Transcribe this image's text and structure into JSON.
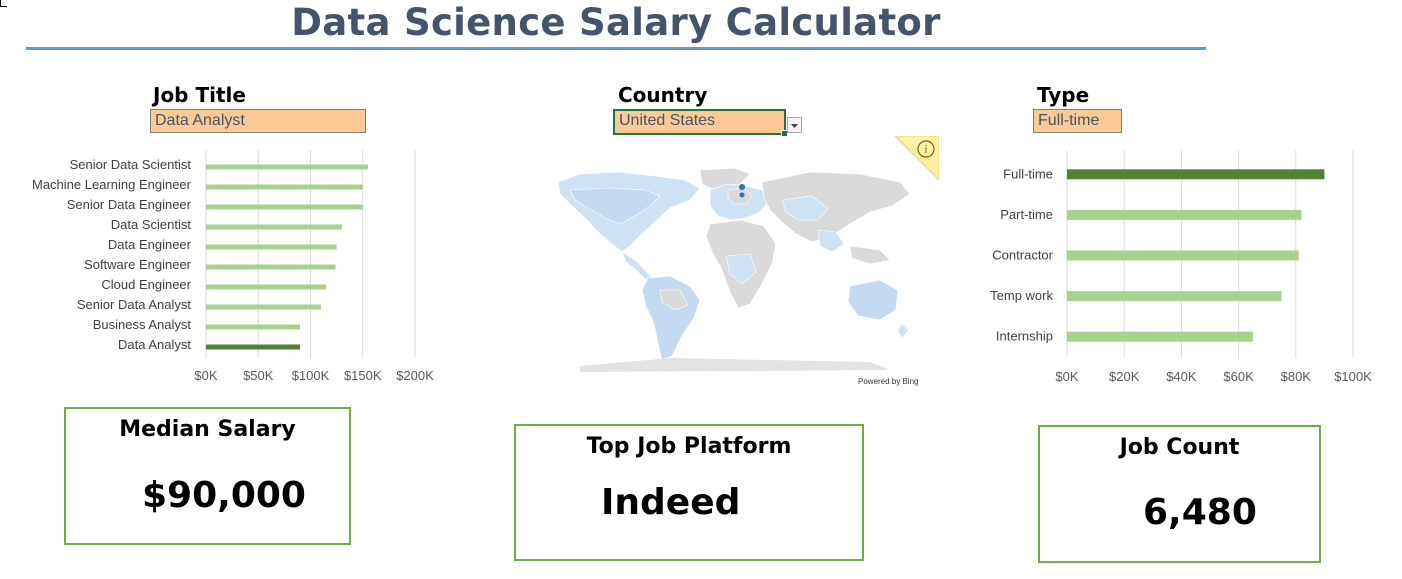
{
  "title": "Data Science Salary Calculator",
  "filters": {
    "job_title": {
      "label": "Job Title",
      "value": "Data Analyst"
    },
    "country": {
      "label": "Country",
      "value": "United States"
    },
    "type": {
      "label": "Type",
      "value": "Full-time"
    }
  },
  "map": {
    "attribution": "Powered by Bing",
    "info_icon": "info-icon"
  },
  "colors": {
    "bar": "#a9d18e",
    "bar_highlight": "#548235",
    "title": "#44546a",
    "accent_rule": "#5b9bd5",
    "field_fill": "#fdc995",
    "kpi_border": "#70ad47"
  },
  "kpis": {
    "median_salary": {
      "label": "Median Salary",
      "value": "$90,000"
    },
    "top_platform": {
      "label": "Top Job Platform",
      "value": "Indeed"
    },
    "job_count": {
      "label": "Job Count",
      "value": "6,480"
    }
  },
  "chart_data": [
    {
      "type": "bar",
      "orientation": "horizontal",
      "categories": [
        "Senior Data Scientist",
        "Machine Learning Engineer",
        "Senior Data Engineer",
        "Data Scientist",
        "Data Engineer",
        "Software Engineer",
        "Cloud Engineer",
        "Senior Data Analyst",
        "Business Analyst",
        "Data Analyst"
      ],
      "values": [
        155000,
        150000,
        150000,
        130000,
        125000,
        124000,
        115000,
        110000,
        90000,
        90000
      ],
      "highlight": "Data Analyst",
      "xlim": [
        0,
        200000
      ],
      "xticks": [
        0,
        50000,
        100000,
        150000,
        200000
      ],
      "xtick_labels": [
        "$0K",
        "$50K",
        "$100K",
        "$150K",
        "$200K"
      ],
      "grid": true
    },
    {
      "type": "bar",
      "orientation": "horizontal",
      "categories": [
        "Full-time",
        "Part-time",
        "Contractor",
        "Temp work",
        "Internship"
      ],
      "values": [
        90000,
        82000,
        81000,
        75000,
        65000
      ],
      "highlight": "Full-time",
      "xlim": [
        0,
        100000
      ],
      "xticks": [
        0,
        20000,
        40000,
        60000,
        80000,
        100000
      ],
      "xtick_labels": [
        "$0K",
        "$20K",
        "$40K",
        "$60K",
        "$80K",
        "$100K"
      ],
      "grid": true
    }
  ]
}
